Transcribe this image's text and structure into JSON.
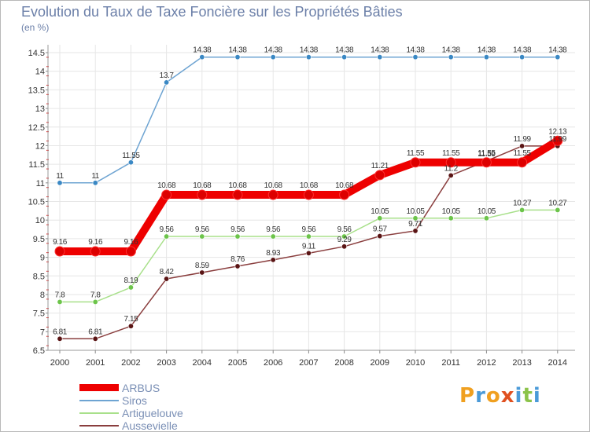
{
  "title": "Evolution du Taux de Taxe Foncière sur les Propriétés Bâties",
  "unit": "(en %)",
  "brand": {
    "letters": [
      "P",
      "r",
      "o",
      "x",
      "i",
      "t",
      "i"
    ],
    "colors": [
      "#f0a020",
      "#4a9ad8",
      "#f0a020",
      "#e05020",
      "#4a9ad8",
      "#8bc34a",
      "#4a9ad8"
    ]
  },
  "chart_data": {
    "type": "line",
    "title": "Evolution du Taux de Taxe Foncière sur les Propriétés Bâties",
    "ylabel": "(en %)",
    "xlabel": "",
    "ylim": [
      6.5,
      14.5
    ],
    "yticks": [
      "6.5",
      "7",
      "7.5",
      "8",
      "8.5",
      "9",
      "9.5",
      "10",
      "10.5",
      "11",
      "11.5",
      "12",
      "12.5",
      "13",
      "13.5",
      "14",
      "14.5"
    ],
    "categories": [
      "2000",
      "2001",
      "2002",
      "2003",
      "2004",
      "2005",
      "2006",
      "2007",
      "2008",
      "2009",
      "2010",
      "2011",
      "2012",
      "2013",
      "2014"
    ],
    "legend_position": "bottom-left",
    "series": [
      {
        "name": "ARBUS",
        "color": "#ee0000",
        "marker": "#dd0000",
        "values": [
          9.16,
          9.16,
          9.16,
          10.68,
          10.68,
          10.68,
          10.68,
          10.68,
          10.68,
          11.21,
          11.55,
          11.55,
          11.55,
          11.55,
          12.13
        ],
        "labels": [
          "9.16",
          "9.16",
          "9.16",
          "10.68",
          "10.68",
          "10.68",
          "10.68",
          "10.68",
          "10.68",
          "11.21",
          "11.55",
          "11.55",
          "11.55",
          "11.55",
          "12.13"
        ]
      },
      {
        "name": "Siros",
        "color": "#6ea4d2",
        "marker": "#3a88c4",
        "values": [
          11,
          11,
          11.55,
          13.7,
          14.38,
          14.38,
          14.38,
          14.38,
          14.38,
          14.38,
          14.38,
          14.38,
          14.38,
          14.38,
          14.38
        ],
        "labels": [
          "11",
          "11",
          "11.55",
          "13.7",
          "14.38",
          "14.38",
          "14.38",
          "14.38",
          "14.38",
          "14.38",
          "14.38",
          "14.38",
          "14.38",
          "14.38",
          "14.38"
        ]
      },
      {
        "name": "Artiguelouve",
        "color": "#a8e08a",
        "marker": "#6cc44a",
        "values": [
          7.8,
          7.8,
          8.19,
          9.56,
          9.56,
          9.56,
          9.56,
          9.56,
          9.56,
          10.05,
          10.05,
          10.05,
          10.05,
          10.27,
          10.27
        ],
        "labels": [
          "7.8",
          "7.8",
          "8.19",
          "9.56",
          "9.56",
          "9.56",
          "9.56",
          "9.56",
          "9.56",
          "10.05",
          "10.05",
          "10.05",
          "10.05",
          "10.27",
          "10.27"
        ]
      },
      {
        "name": "Aussevielle",
        "color": "#8a3e3e",
        "marker": "#5a1414",
        "values": [
          6.81,
          6.81,
          7.15,
          8.42,
          8.59,
          8.76,
          8.93,
          9.11,
          9.29,
          9.57,
          9.71,
          11.2,
          11.59,
          11.99,
          11.99
        ],
        "labels": [
          "6.81",
          "6.81",
          "7.15",
          "8.42",
          "8.59",
          "8.76",
          "8.93",
          "9.11",
          "9.29",
          "9.57",
          "9.71",
          "11.2",
          "11.59",
          "11.99",
          "11.99"
        ]
      }
    ]
  }
}
